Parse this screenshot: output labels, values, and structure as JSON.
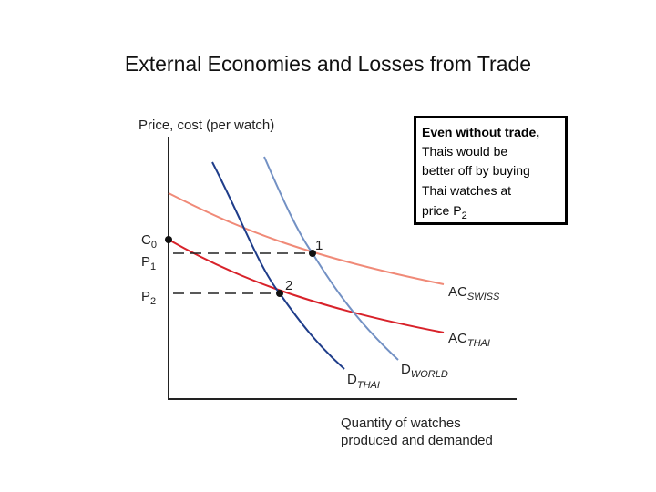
{
  "title": "External Economies and Losses from Trade",
  "axes": {
    "y_label": "Price, cost (per watch)",
    "x_label": [
      "Quantity of watches",
      "produced and demanded"
    ]
  },
  "price_labels": [
    {
      "main": "C",
      "sub": "0"
    },
    {
      "main": "P",
      "sub": "1"
    },
    {
      "main": "P",
      "sub": "2"
    }
  ],
  "points": [
    "1",
    "2"
  ],
  "curves": [
    {
      "main": "AC",
      "sub": "SWISS"
    },
    {
      "main": "AC",
      "sub": "THAI"
    },
    {
      "main": "D",
      "sub": "THAI"
    },
    {
      "main": "D",
      "sub": "WORLD"
    }
  ],
  "callout": {
    "lines": [
      "Even without trade,",
      "Thais would be",
      "better off by buying",
      "Thai watches at"
    ],
    "last": {
      "main": "price P",
      "sub": "2"
    }
  }
}
